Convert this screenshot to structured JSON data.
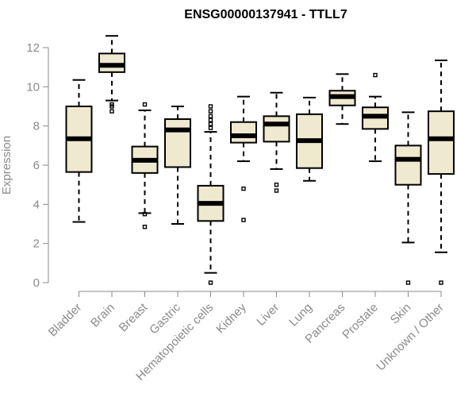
{
  "chart_data": {
    "type": "boxplot",
    "title": "ENSG00000137941 - TTLL7",
    "xlabel": "",
    "ylabel": "Expression",
    "ylim": [
      0,
      12
    ],
    "yticks": [
      0,
      2,
      4,
      6,
      8,
      10,
      12
    ],
    "grid": false,
    "legend": "none",
    "box_fill": "#efe9d0",
    "categories": [
      "Bladder",
      "Brain",
      "Breast",
      "Gastric",
      "Hematopoietic cells",
      "Kidney",
      "Liver",
      "Lung",
      "Pancreas",
      "Prostate",
      "Skin",
      "Unknown / Other"
    ],
    "boxes": [
      {
        "name": "Bladder",
        "whisker_low": 3.1,
        "q1": 5.65,
        "median": 7.35,
        "q3": 9.0,
        "whisker_high": 10.35,
        "outliers": []
      },
      {
        "name": "Brain",
        "whisker_low": 9.3,
        "q1": 10.75,
        "median": 11.1,
        "q3": 11.7,
        "whisker_high": 12.6,
        "outliers": [
          9.1,
          9.0,
          8.75
        ]
      },
      {
        "name": "Breast",
        "whisker_low": 3.55,
        "q1": 5.6,
        "median": 6.25,
        "q3": 6.95,
        "whisker_high": 8.8,
        "outliers": [
          9.1,
          3.5,
          2.85
        ]
      },
      {
        "name": "Gastric",
        "whisker_low": 3.0,
        "q1": 5.9,
        "median": 7.8,
        "q3": 8.35,
        "whisker_high": 9.0,
        "outliers": []
      },
      {
        "name": "Hematopoietic cells",
        "whisker_low": 0.5,
        "q1": 3.15,
        "median": 4.05,
        "q3": 4.95,
        "whisker_high": 7.7,
        "outliers": [
          9.0,
          8.75,
          8.5,
          8.3,
          8.1,
          7.9,
          0.0
        ]
      },
      {
        "name": "Kidney",
        "whisker_low": 6.2,
        "q1": 7.15,
        "median": 7.5,
        "q3": 8.2,
        "whisker_high": 9.5,
        "outliers": [
          4.8,
          3.2
        ]
      },
      {
        "name": "Liver",
        "whisker_low": 5.8,
        "q1": 7.2,
        "median": 8.1,
        "q3": 8.5,
        "whisker_high": 9.7,
        "outliers": [
          5.0,
          4.7
        ]
      },
      {
        "name": "Lung",
        "whisker_low": 5.2,
        "q1": 5.85,
        "median": 7.25,
        "q3": 8.6,
        "whisker_high": 9.45,
        "outliers": []
      },
      {
        "name": "Pancreas",
        "whisker_low": 8.1,
        "q1": 9.05,
        "median": 9.5,
        "q3": 9.8,
        "whisker_high": 10.65,
        "outliers": []
      },
      {
        "name": "Prostate",
        "whisker_low": 6.2,
        "q1": 7.85,
        "median": 8.5,
        "q3": 8.95,
        "whisker_high": 9.5,
        "outliers": [
          10.6
        ]
      },
      {
        "name": "Skin",
        "whisker_low": 2.05,
        "q1": 5.0,
        "median": 6.3,
        "q3": 7.0,
        "whisker_high": 8.7,
        "outliers": [
          0.0
        ]
      },
      {
        "name": "Unknown / Other",
        "whisker_low": 1.55,
        "q1": 5.55,
        "median": 7.35,
        "q3": 8.75,
        "whisker_high": 11.35,
        "outliers": [
          0.0
        ]
      }
    ]
  }
}
